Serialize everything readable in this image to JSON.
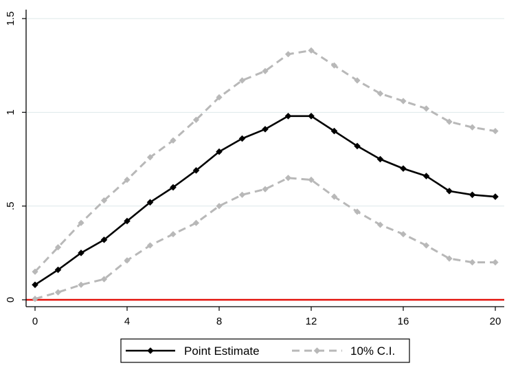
{
  "chart_data": {
    "type": "line",
    "title": "",
    "xlabel": "",
    "ylabel": "",
    "xlim": [
      0,
      20
    ],
    "ylim": [
      0,
      1.5
    ],
    "grid": true,
    "x": [
      0,
      1,
      2,
      3,
      4,
      5,
      6,
      7,
      8,
      9,
      10,
      11,
      12,
      13,
      14,
      15,
      16,
      17,
      18,
      19,
      20
    ],
    "x_ticks": [
      {
        "value": 0,
        "label": "0"
      },
      {
        "value": 4,
        "label": "4"
      },
      {
        "value": 8,
        "label": "8"
      },
      {
        "value": 12,
        "label": "12"
      },
      {
        "value": 16,
        "label": "16"
      },
      {
        "value": 20,
        "label": "20"
      }
    ],
    "y_ticks": [
      {
        "value": 0,
        "label": "0"
      },
      {
        "value": 0.5,
        "label": ".5"
      },
      {
        "value": 1,
        "label": "1"
      },
      {
        "value": 1.5,
        "label": "1.5"
      }
    ],
    "reference_line": {
      "value": 0,
      "color": "#e3120b"
    },
    "series": [
      {
        "name": "10% C.I. (upper)",
        "style": "dashed",
        "color": "#b8b8b8",
        "values": [
          0.15,
          0.28,
          0.41,
          0.53,
          0.64,
          0.76,
          0.85,
          0.96,
          1.08,
          1.17,
          1.22,
          1.31,
          1.33,
          1.25,
          1.17,
          1.1,
          1.06,
          1.02,
          0.95,
          0.92,
          0.9
        ]
      },
      {
        "name": "10% C.I. (lower)",
        "style": "dashed",
        "color": "#b8b8b8",
        "values": [
          0.005,
          0.04,
          0.08,
          0.11,
          0.21,
          0.29,
          0.35,
          0.41,
          0.5,
          0.56,
          0.59,
          0.65,
          0.64,
          0.55,
          0.47,
          0.4,
          0.35,
          0.29,
          0.22,
          0.2,
          0.2
        ]
      },
      {
        "name": "Point Estimate",
        "style": "solid",
        "color": "#000000",
        "values": [
          0.08,
          0.16,
          0.25,
          0.32,
          0.42,
          0.52,
          0.6,
          0.69,
          0.79,
          0.86,
          0.91,
          0.98,
          0.98,
          0.9,
          0.82,
          0.75,
          0.7,
          0.66,
          0.58,
          0.56,
          0.55
        ]
      }
    ],
    "legend": {
      "position": "bottom",
      "entries": [
        {
          "label": "Point Estimate",
          "style": "solid",
          "color": "#000000"
        },
        {
          "label": "10% C.I.",
          "style": "dashed",
          "color": "#b8b8b8"
        }
      ]
    }
  }
}
